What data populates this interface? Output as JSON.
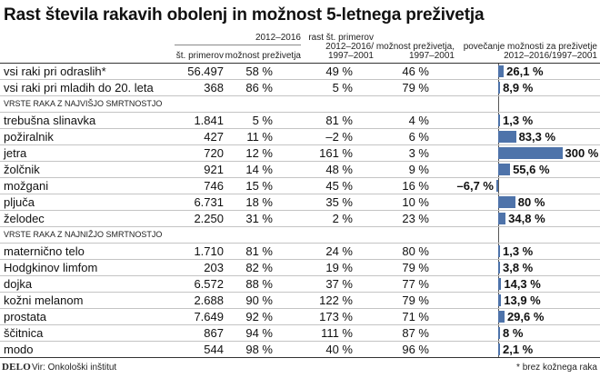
{
  "chart_data": {
    "type": "table",
    "title": "Rast števila rakavih obolenj in možnost 5-letnega preživetja",
    "header": {
      "group_2012_2016": "2012–2016",
      "cases": "št. primerov",
      "survival_2012_2016": "možnost preživetja",
      "growth": [
        "rast št. primerov",
        "2012–2016/",
        "1997–2001"
      ],
      "survival_1997_2001": [
        "možnost preživetja,",
        "1997–2001"
      ],
      "increase": [
        "povečanje možnosti za preživetje",
        "2012–2016/1997–2001"
      ]
    },
    "groups": [
      {
        "rows": [
          {
            "label": "vsi raki pri odraslih*",
            "cases": "56.497",
            "survival_2012_2016": "58 %",
            "growth": "49 %",
            "survival_1997_2001": "46 %",
            "increase": "26,1 %",
            "increase_pct": 26.1
          },
          {
            "label": "vsi raki pri mladih do 20. leta",
            "cases": "368",
            "survival_2012_2016": "86 %",
            "growth": "5 %",
            "survival_1997_2001": "79 %",
            "increase": "8,9 %",
            "increase_pct": 8.9
          }
        ]
      },
      {
        "name": "VRSTE RAKA Z NAJVIŠJO SMRTNOSTJO",
        "rows": [
          {
            "label": "trebušna slinavka",
            "cases": "1.841",
            "survival_2012_2016": "5 %",
            "growth": "81 %",
            "survival_1997_2001": "4 %",
            "increase": "1,3 %",
            "increase_pct": 1.3
          },
          {
            "label": "požiralnik",
            "cases": "427",
            "survival_2012_2016": "11 %",
            "growth": "–2 %",
            "survival_1997_2001": "6 %",
            "increase": "83,3 %",
            "increase_pct": 83.3
          },
          {
            "label": "jetra",
            "cases": "720",
            "survival_2012_2016": "12 %",
            "growth": "161 %",
            "survival_1997_2001": "3 %",
            "increase": "300 %",
            "increase_pct": 300
          },
          {
            "label": "žolčnik",
            "cases": "921",
            "survival_2012_2016": "14 %",
            "growth": "48 %",
            "survival_1997_2001": "9 %",
            "increase": "55,6 %",
            "increase_pct": 55.6
          },
          {
            "label": "možgani",
            "cases": "746",
            "survival_2012_2016": "15 %",
            "growth": "45 %",
            "survival_1997_2001": "16 %",
            "increase": "–6,7 %",
            "increase_pct": -6.7
          },
          {
            "label": "pljuča",
            "cases": "6.731",
            "survival_2012_2016": "18 %",
            "growth": "35 %",
            "survival_1997_2001": "10 %",
            "increase": "80 %",
            "increase_pct": 80
          },
          {
            "label": "želodec",
            "cases": "2.250",
            "survival_2012_2016": "31 %",
            "growth": "2 %",
            "survival_1997_2001": "23 %",
            "increase": "34,8 %",
            "increase_pct": 34.8
          }
        ]
      },
      {
        "name": "VRSTE RAKA Z NAJNIŽJO SMRTNOSTJO",
        "rows": [
          {
            "label": "maternično telo",
            "cases": "1.710",
            "survival_2012_2016": "81 %",
            "growth": "24 %",
            "survival_1997_2001": "80 %",
            "increase": "1,3 %",
            "increase_pct": 1.3
          },
          {
            "label": "Hodgkinov limfom",
            "cases": "203",
            "survival_2012_2016": "82 %",
            "growth": "19 %",
            "survival_1997_2001": "79 %",
            "increase": "3,8 %",
            "increase_pct": 3.8
          },
          {
            "label": "dojka",
            "cases": "6.572",
            "survival_2012_2016": "88 %",
            "growth": "37 %",
            "survival_1997_2001": "77 %",
            "increase": "14,3 %",
            "increase_pct": 14.3
          },
          {
            "label": "kožni melanom",
            "cases": "2.688",
            "survival_2012_2016": "90 %",
            "growth": "122 %",
            "survival_1997_2001": "79 %",
            "increase": "13,9 %",
            "increase_pct": 13.9
          },
          {
            "label": "prostata",
            "cases": "7.649",
            "survival_2012_2016": "92 %",
            "growth": "173 %",
            "survival_1997_2001": "71 %",
            "increase": "29,6 %",
            "increase_pct": 29.6
          },
          {
            "label": "ščitnica",
            "cases": "867",
            "survival_2012_2016": "94 %",
            "growth": "111 %",
            "survival_1997_2001": "87 %",
            "increase": "8 %",
            "increase_pct": 8
          },
          {
            "label": "modo",
            "cases": "544",
            "survival_2012_2016": "98 %",
            "growth": "40 %",
            "survival_1997_2001": "96 %",
            "increase": "2,1 %",
            "increase_pct": 2.1
          }
        ]
      }
    ]
  },
  "footer": {
    "logo": "DELO",
    "source": "Vir: Onkološki inštitut",
    "note": "* brez kožnega raka"
  },
  "colors": {
    "bar": "#4e73aa"
  }
}
